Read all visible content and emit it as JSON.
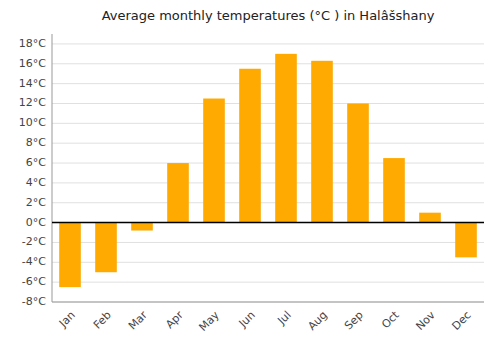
{
  "chart_data": {
    "type": "bar",
    "title": "Average monthly temperatures (°C ) in Halâšshany",
    "categories": [
      "Jan",
      "Feb",
      "Mar",
      "Apr",
      "May",
      "Jun",
      "Jul",
      "Aug",
      "Sep",
      "Oct",
      "Nov",
      "Dec"
    ],
    "values": [
      -6.5,
      -5.0,
      -0.8,
      6.0,
      12.5,
      15.5,
      17.0,
      16.3,
      12.0,
      6.5,
      1.0,
      -3.5
    ],
    "color": "#FFAA00",
    "ylim": [
      -8,
      19
    ],
    "yticks": [
      {
        "value": -8,
        "label": "-8°C"
      },
      {
        "value": -6,
        "label": "-6°C"
      },
      {
        "value": -4,
        "label": "-4°C"
      },
      {
        "value": -2,
        "label": "-2°C"
      },
      {
        "value": 0,
        "label": "0°C"
      },
      {
        "value": 2,
        "label": "2°C"
      },
      {
        "value": 4,
        "label": "4°C"
      },
      {
        "value": 6,
        "label": "6°C"
      },
      {
        "value": 8,
        "label": "8°C"
      },
      {
        "value": 10,
        "label": "10°C"
      },
      {
        "value": 12,
        "label": "12°C"
      },
      {
        "value": 14,
        "label": "14°C"
      },
      {
        "value": 16,
        "label": "16°C"
      },
      {
        "value": 18,
        "label": "18°C"
      }
    ],
    "grid": true
  }
}
